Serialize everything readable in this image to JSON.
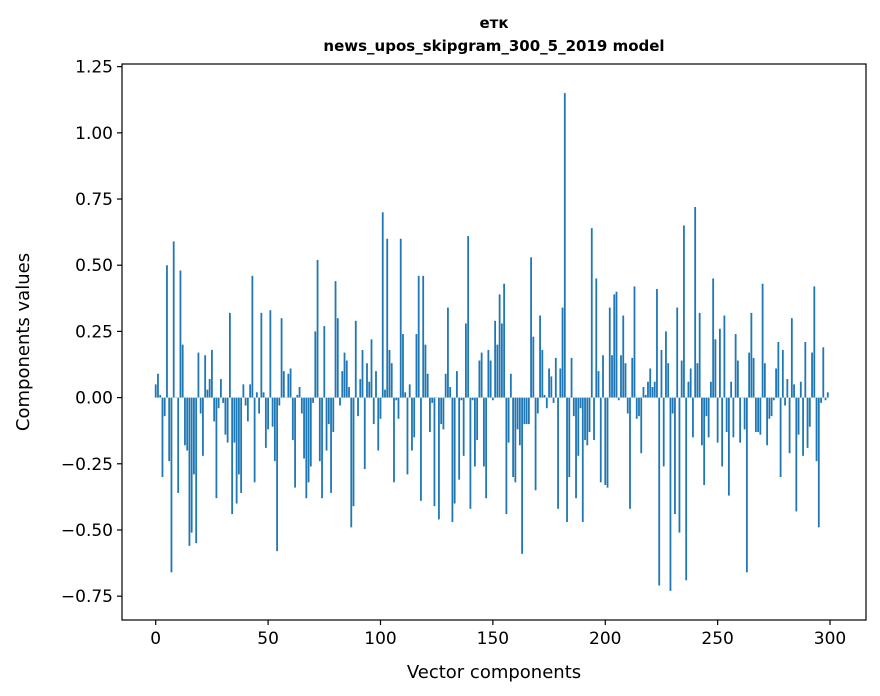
{
  "chart_data": {
    "type": "bar",
    "title_lines": [
      "етк",
      "news_upos_skipgram_300_5_2019 model"
    ],
    "xlabel": "Vector components",
    "ylabel": "Components values",
    "xlim": [
      -15,
      316
    ],
    "ylim": [
      -0.84,
      1.26
    ],
    "xticks": [
      0,
      50,
      100,
      150,
      200,
      250,
      300
    ],
    "xtick_labels": [
      "0",
      "50",
      "100",
      "150",
      "200",
      "250",
      "300"
    ],
    "yticks": [
      -0.75,
      -0.5,
      -0.25,
      0,
      0.25,
      0.5,
      0.75,
      1.0,
      1.25
    ],
    "ytick_labels": [
      "−0.75",
      "−0.50",
      "−0.25",
      "0.00",
      "0.25",
      "0.50",
      "0.75",
      "1.00",
      "1.25"
    ],
    "grid": false,
    "bar_color": "#1f77b4",
    "values": [
      0.05,
      0.09,
      0.01,
      -0.3,
      -0.07,
      0.5,
      -0.24,
      -0.66,
      0.59,
      0.0,
      -0.36,
      0.48,
      0.2,
      -0.18,
      -0.2,
      -0.56,
      -0.51,
      -0.29,
      -0.55,
      0.17,
      -0.06,
      -0.22,
      0.16,
      0.03,
      0.07,
      0.18,
      -0.09,
      -0.38,
      -0.04,
      0.07,
      -0.02,
      -0.14,
      -0.17,
      0.32,
      -0.44,
      -0.17,
      -0.4,
      -0.29,
      -0.36,
      0.05,
      -0.03,
      -0.09,
      0.05,
      0.46,
      -0.32,
      0.02,
      -0.06,
      0.32,
      0.02,
      -0.19,
      -0.12,
      0.33,
      -0.11,
      -0.24,
      -0.58,
      -0.03,
      0.3,
      0.1,
      0.0,
      0.09,
      0.11,
      -0.16,
      -0.34,
      0.01,
      0.04,
      -0.06,
      -0.23,
      -0.38,
      -0.32,
      -0.26,
      -0.02,
      0.25,
      0.52,
      -0.24,
      -0.38,
      0.27,
      -0.2,
      -0.1,
      -0.36,
      -0.13,
      0.44,
      0.3,
      -0.03,
      0.1,
      0.17,
      0.14,
      0.04,
      -0.49,
      -0.41,
      0.29,
      -0.07,
      0.07,
      0.18,
      -0.27,
      0.13,
      0.06,
      0.22,
      -0.1,
      0.1,
      -0.2,
      -0.08,
      0.7,
      0.03,
      0.6,
      0.18,
      0.13,
      -0.32,
      -0.01,
      -0.08,
      0.6,
      0.24,
      0.02,
      -0.29,
      0.05,
      -0.2,
      -0.15,
      0.24,
      0.46,
      -0.39,
      0.46,
      0.2,
      0.09,
      -0.13,
      -0.02,
      -0.41,
      0.0,
      -0.46,
      -0.1,
      -0.12,
      0.09,
      0.34,
      0.04,
      -0.47,
      -0.4,
      0.1,
      -0.31,
      -0.01,
      -0.22,
      0.28,
      0.61,
      -0.42,
      -0.01,
      -0.26,
      -0.16,
      0.14,
      0.17,
      -0.26,
      -0.38,
      0.18,
      0.14,
      -0.01,
      0.29,
      0.2,
      0.39,
      0.28,
      0.43,
      -0.44,
      -0.17,
      0.09,
      -0.3,
      -0.32,
      -0.12,
      -0.18,
      -0.59,
      -0.1,
      -0.1,
      -0.1,
      0.53,
      0.23,
      -0.35,
      -0.06,
      0.31,
      0.18,
      0.01,
      -0.04,
      0.11,
      0.08,
      -0.02,
      0.15,
      -0.42,
      0.11,
      0.34,
      1.15,
      -0.47,
      -0.3,
      0.15,
      -0.07,
      -0.38,
      -0.22,
      -0.04,
      -0.47,
      -0.16,
      -0.18,
      -0.13,
      0.64,
      -0.16,
      0.45,
      0.1,
      -0.32,
      0.16,
      -0.33,
      -0.34,
      0.34,
      0.16,
      0.39,
      0.4,
      -0.01,
      0.16,
      0.31,
      0.13,
      -0.06,
      -0.42,
      0.15,
      0.42,
      -0.08,
      -0.07,
      -0.21,
      0.04,
      0.01,
      0.06,
      0.11,
      0.04,
      0.06,
      0.41,
      -0.71,
      0.18,
      -0.26,
      0.25,
      0.13,
      -0.73,
      -0.06,
      -0.44,
      0.34,
      -0.51,
      0.14,
      0.65,
      -0.69,
      0.06,
      0.11,
      -0.15,
      0.72,
      0.13,
      0.32,
      -0.18,
      -0.33,
      -0.07,
      -0.15,
      0.06,
      0.45,
      0.22,
      -0.17,
      0.26,
      -0.26,
      0.31,
      -0.13,
      -0.37,
      0.06,
      -0.15,
      0.24,
      0.14,
      -0.17,
      0.0,
      -0.12,
      -0.66,
      0.17,
      0.32,
      0.15,
      -0.13,
      -0.13,
      -0.14,
      0.43,
      0.13,
      -0.18,
      -0.08,
      -0.07,
      -0.01,
      0.11,
      0.21,
      -0.3,
      0.18,
      -0.03,
      0.07,
      -0.21,
      0.3,
      0.05,
      -0.43,
      -0.14,
      0.06,
      -0.22,
      0.21,
      -0.19,
      -0.11,
      0.17,
      0.42,
      -0.24,
      -0.49,
      -0.02,
      0.19,
      -0.01,
      0.02
    ]
  }
}
